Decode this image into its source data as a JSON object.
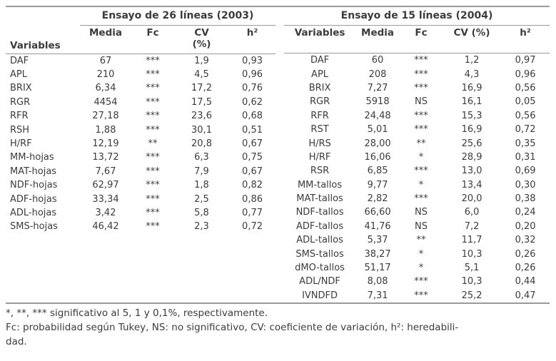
{
  "tables": [
    {
      "title": "Ensayo de 26 líneas (2003)",
      "header": {
        "variables": "Variables",
        "media": "Media",
        "fc": "Fc",
        "cv": "CV\n(%)",
        "h2": "h²"
      },
      "rows": [
        [
          "DAF",
          "67",
          "***",
          "1,9",
          "0,93"
        ],
        [
          "APL",
          "210",
          "***",
          "4,5",
          "0,96"
        ],
        [
          "BRIX",
          "6,34",
          "***",
          "17,2",
          "0,76"
        ],
        [
          "RGR",
          "4454",
          "***",
          "17,5",
          "0,62"
        ],
        [
          "RFR",
          "27,18",
          "***",
          "23,6",
          "0,68"
        ],
        [
          "RSH",
          "1,88",
          "***",
          "30,1",
          "0,51"
        ],
        [
          "H/RF",
          "12,19",
          "**",
          "20,8",
          "0,67"
        ],
        [
          "MM-hojas",
          "13,72",
          "***",
          "6,3",
          "0,75"
        ],
        [
          "MAT-hojas",
          "7,67",
          "***",
          "7,9",
          "0,67"
        ],
        [
          "NDF-hojas",
          "62,97",
          "***",
          "1,8",
          "0,82"
        ],
        [
          "ADF-hojas",
          "33,34",
          "***",
          "2,5",
          "0,86"
        ],
        [
          "ADL-hojas",
          "3,42",
          "***",
          "5,8",
          "0,77"
        ],
        [
          "SMS-hojas",
          "46,42",
          "***",
          "2,3",
          "0,72"
        ]
      ]
    },
    {
      "title": "Ensayo de 15 líneas (2004)",
      "header": {
        "variables": "Variables",
        "media": "Media",
        "fc": "Fc",
        "cv": "CV (%)",
        "h2": "h²"
      },
      "rows": [
        [
          "DAF",
          "60",
          "***",
          "1,2",
          "0,97"
        ],
        [
          "APL",
          "208",
          "***",
          "4,3",
          "0,96"
        ],
        [
          "BRIX",
          "7,27",
          "***",
          "16,9",
          "0,56"
        ],
        [
          "RGR",
          "5918",
          "NS",
          "16,1",
          "0,05"
        ],
        [
          "RFR",
          "24,48",
          "***",
          "15,3",
          "0,56"
        ],
        [
          "RST",
          "5,01",
          "***",
          "16,9",
          "0,72"
        ],
        [
          "H/RS",
          "28,00",
          "**",
          "25,6",
          "0,35"
        ],
        [
          "H/RF",
          "16,06",
          "*",
          "28,9",
          "0,31"
        ],
        [
          "RSR",
          "6,85",
          "***",
          "13,0",
          "0,69"
        ],
        [
          "MM-tallos",
          "9,77",
          "*",
          "13,4",
          "0,30"
        ],
        [
          "MAT-tallos",
          "2,82",
          "***",
          "20,0",
          "0,38"
        ],
        [
          "NDF-tallos",
          "66,60",
          "NS",
          "6,0",
          "0,24"
        ],
        [
          "ADF-tallos",
          "41,76",
          "NS",
          "7,2",
          "0,20"
        ],
        [
          "ADL-tallos",
          "5,37",
          "**",
          "11,7",
          "0,32"
        ],
        [
          "SMS-tallos",
          "38,27",
          "*",
          "10,3",
          "0,26"
        ],
        [
          "dMO-tallos",
          "51,17",
          "*",
          "5,1",
          "0,26"
        ],
        [
          "ADL/NDF",
          "8,08",
          "***",
          "10,3",
          "0,44"
        ],
        [
          "IVNDFD",
          "7,31",
          "***",
          "25,2",
          "0,47"
        ]
      ]
    }
  ],
  "footnotes": [
    "*, **, *** significativo al 5, 1 y 0,1%, respectivamente.",
    "Fc: probabilidad según Tukey, NS: no significativo, CV: coeficiente de variación, h²: heredabili-",
    "dad."
  ]
}
